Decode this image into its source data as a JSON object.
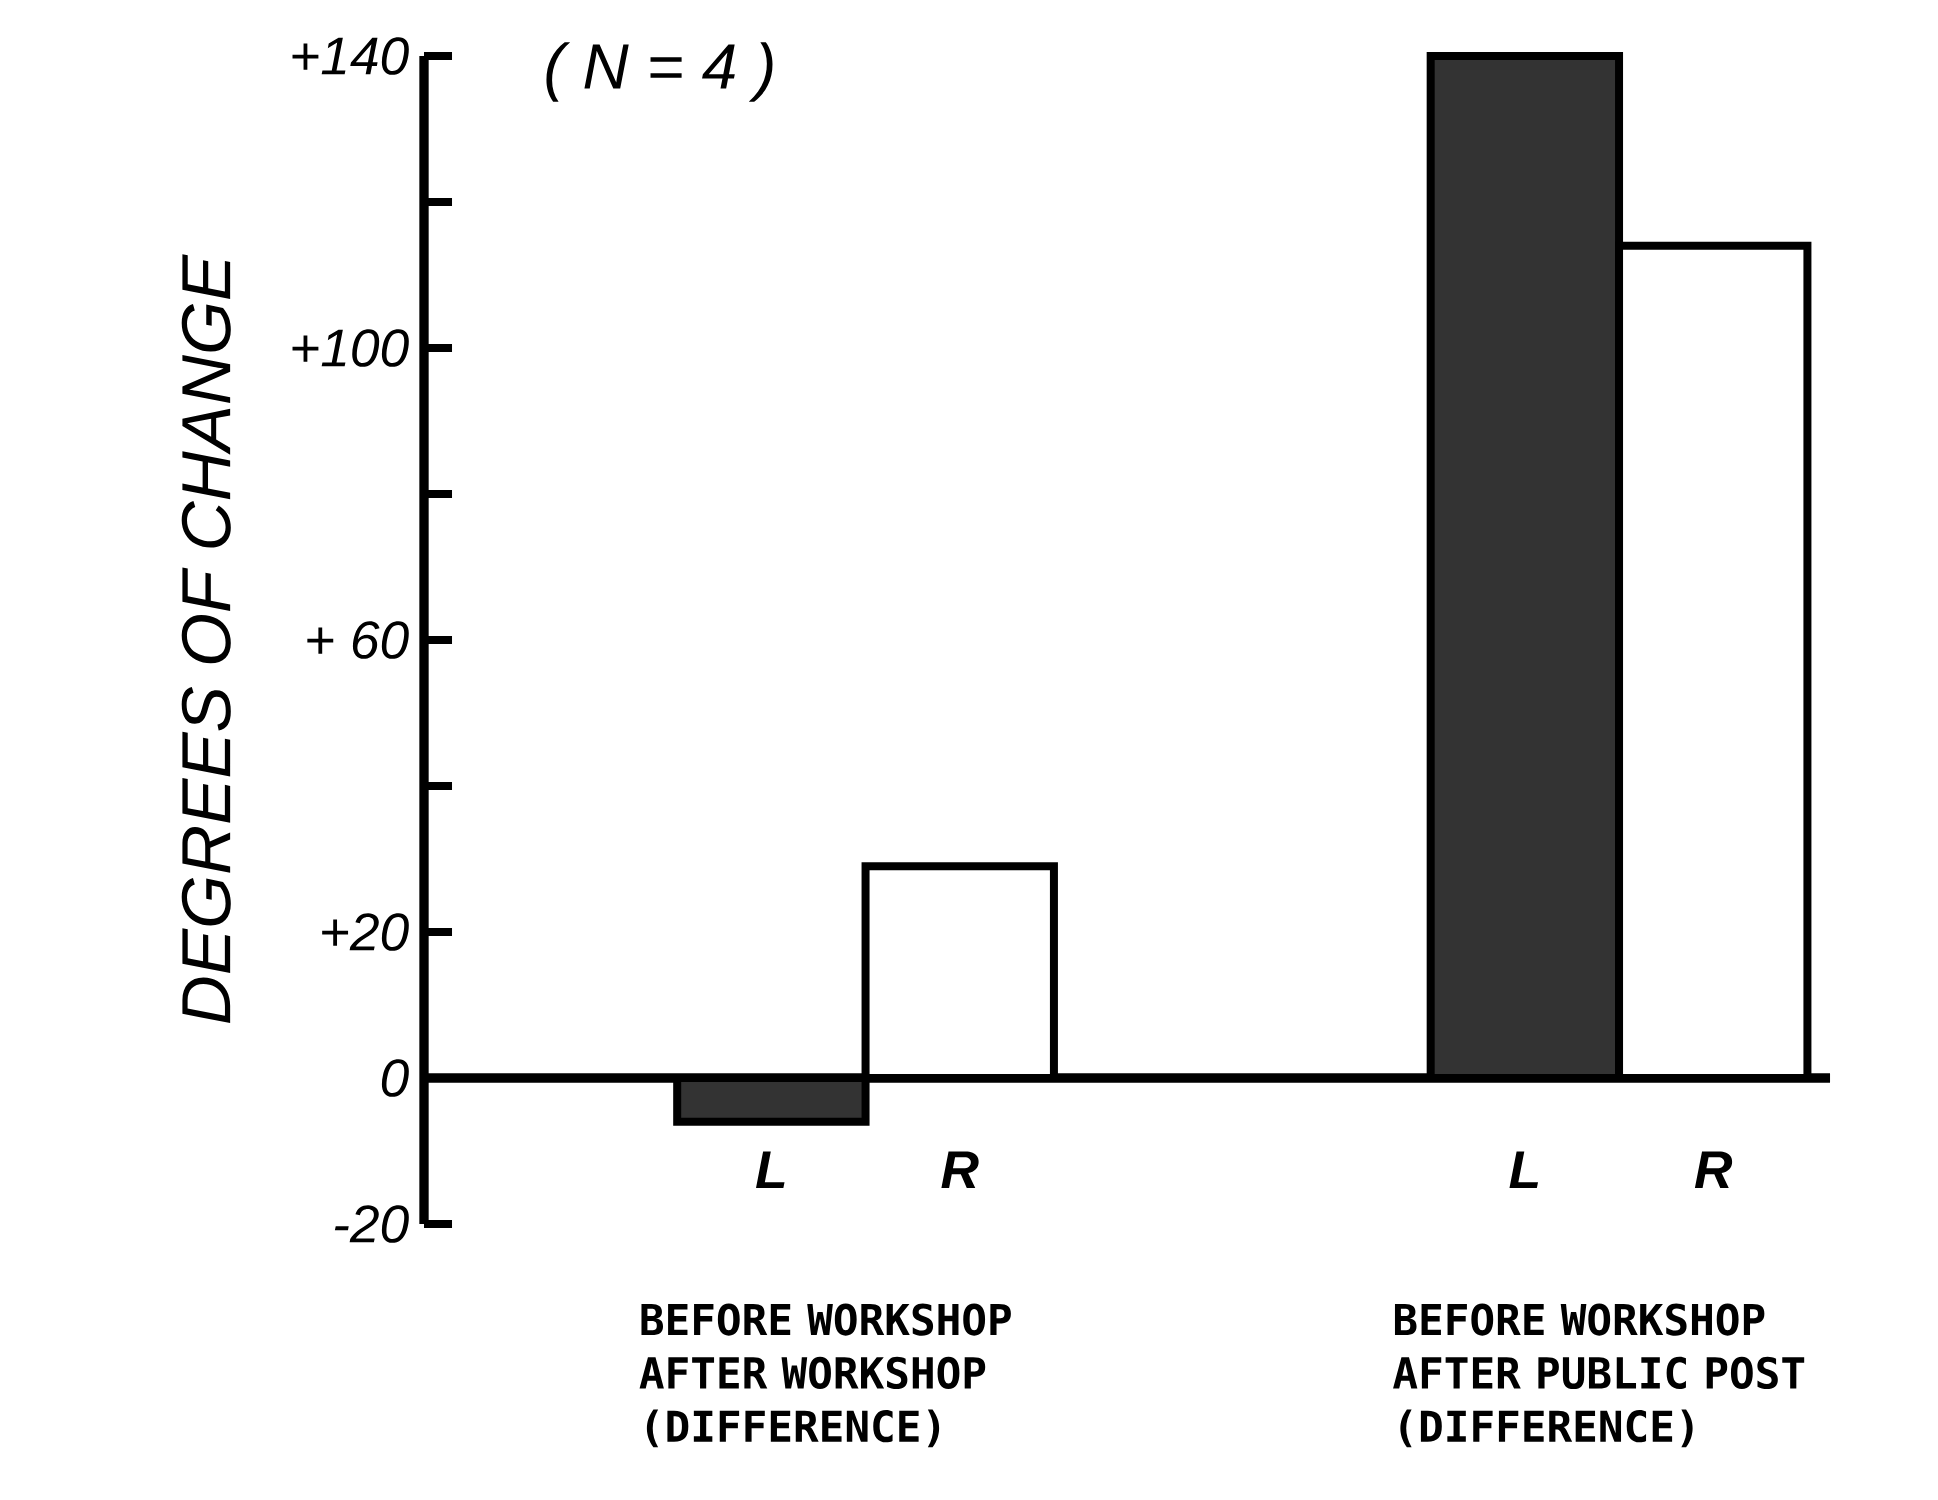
{
  "chart_data": {
    "type": "bar",
    "title": "( N = 4 )",
    "ylabel": "DEGREES OF CHANGE",
    "categories": [
      "BEFORE WORKSHOP AFTER WORKSHOP (DIFFERENCE)",
      "BEFORE WORKSHOP AFTER PUBLIC POST (DIFFERENCE)"
    ],
    "series": [
      {
        "name": "L",
        "color": "#333333",
        "values": [
          -6,
          140
        ]
      },
      {
        "name": "R",
        "color": "#ffffff",
        "values": [
          29,
          114
        ]
      }
    ],
    "ylim": [
      -20,
      140
    ],
    "yticks": [
      -20,
      0,
      {
        "value": 20,
        "label": "+20"
      },
      {
        "value": 40,
        "label": null
      },
      {
        "value": 60,
        "label": "+ 60"
      },
      {
        "value": 80,
        "label": null
      },
      {
        "value": 100,
        "label": "+100"
      },
      {
        "value": 120,
        "label": null
      },
      {
        "value": 140,
        "label": "+140"
      }
    ],
    "ref_lines": [
      {
        "axis": "y",
        "value": 0
      }
    ],
    "legend": false,
    "grid": false
  }
}
